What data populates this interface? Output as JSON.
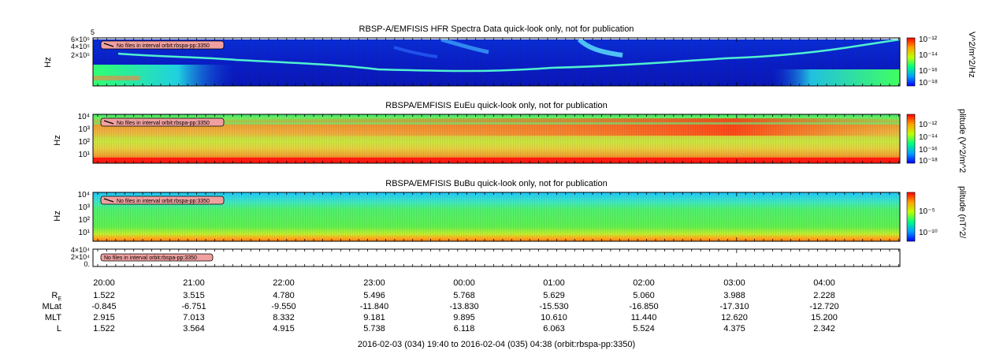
{
  "footer": "2016-02-03 (034) 19:40 to 2016-02-04 (035) 04:38 (orbit:rbspa-pp:3350)",
  "chart_data": [
    {
      "type": "heatmap",
      "title": "RBSP-A/EMFISIS  HFR Spectra Data quick-look only, not for publication",
      "ylabel": "Hz",
      "ytick_labels": [
        "6×10⁵",
        "4×10⁵",
        "2×10⁵",
        "5"
      ],
      "colorbar_label": "V^2/m^2/Hz",
      "colorbar_ticks": [
        "10⁻¹²",
        "10⁻¹⁴",
        "10⁻¹⁶",
        "10⁻¹⁸"
      ],
      "note": "No files in interval orbit:rbspa-pp:3350"
    },
    {
      "type": "heatmap",
      "title": "RBSPA/EMFISIS  EuEu quick-look only, not for publication",
      "ylabel": "Hz",
      "ytick_labels": [
        "10⁴",
        "10³",
        "10²",
        "10¹"
      ],
      "colorbar_label": "plitude (V^2/m^2",
      "colorbar_ticks": [
        "10⁻¹²",
        "10⁻¹⁴",
        "10⁻¹⁶",
        "10⁻¹⁸"
      ],
      "note": "No files in interval orbit:rbspa-pp:3350"
    },
    {
      "type": "heatmap",
      "title": "RBSPA/EMFISIS  BuBu quick-look only, not for publication",
      "ylabel": "Hz",
      "ytick_labels": [
        "10⁴",
        "10³",
        "10²",
        "10¹"
      ],
      "colorbar_label": "plitude (nT^2/",
      "colorbar_ticks": [
        "10⁻⁵",
        "10⁻¹⁰"
      ],
      "note": "No files in interval orbit:rbspa-pp:3350"
    },
    {
      "type": "line",
      "ytick_labels": [
        "4×10⁴",
        "2×10⁴",
        "0."
      ],
      "note": "No files in interval orbit:rbspa-pp:3350"
    }
  ],
  "ephemeris": {
    "times": [
      "20:00",
      "21:00",
      "22:00",
      "23:00",
      "00:00",
      "01:00",
      "02:00",
      "03:00",
      "04:00"
    ],
    "rows": [
      {
        "label": "R",
        "sub": "E",
        "values": [
          "1.522",
          "3.515",
          "4.780",
          "5.496",
          "5.768",
          "5.629",
          "5.060",
          "3.988",
          "2.228"
        ]
      },
      {
        "label": "MLat",
        "values": [
          "-0.845",
          "-6.751",
          "-9.550",
          "-11.840",
          "-13.830",
          "-15.530",
          "-16.850",
          "-17.310",
          "-12.720"
        ]
      },
      {
        "label": "MLT",
        "values": [
          "2.915",
          "7.013",
          "8.332",
          "9.181",
          "9.895",
          "10.610",
          "11.440",
          "12.620",
          "15.200"
        ]
      },
      {
        "label": "L",
        "values": [
          "1.522",
          "3.564",
          "4.915",
          "5.738",
          "6.118",
          "6.063",
          "5.524",
          "4.375",
          "2.342"
        ]
      }
    ]
  }
}
